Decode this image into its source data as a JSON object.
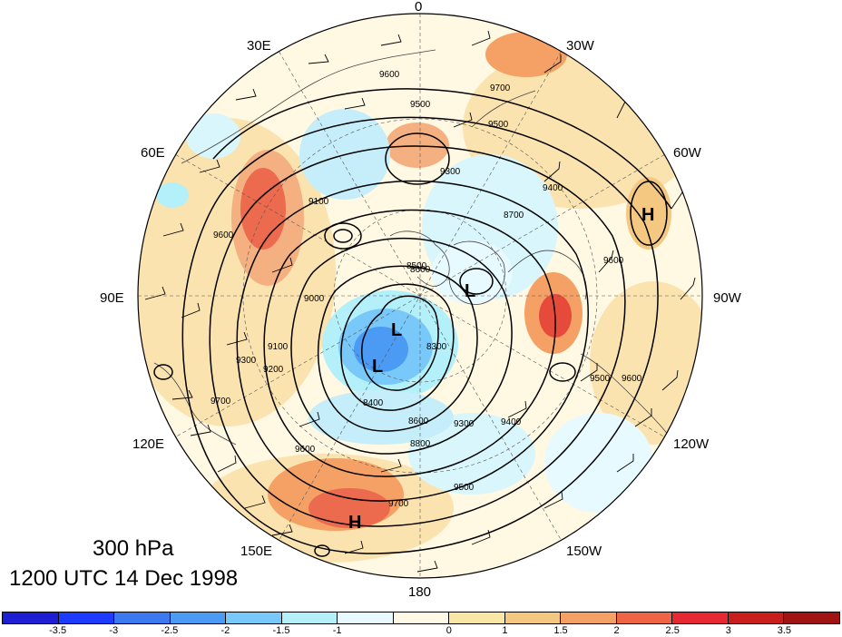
{
  "title": {
    "level": "300 hPa",
    "time": "1200 UTC 14 Dec 1998"
  },
  "longitude_labels": {
    "lon_0": "0",
    "lon_30w": "30W",
    "lon_60w": "60W",
    "lon_90w": "90W",
    "lon_120w": "120W",
    "lon_150w": "150W",
    "lon_180": "180",
    "lon_150e": "150E",
    "lon_120e": "120E",
    "lon_90e": "90E",
    "lon_60e": "60E",
    "lon_30e": "30E"
  },
  "pressure_centers": [
    "H",
    "L",
    "L",
    "L",
    "H"
  ],
  "contour_labels": [
    "9600",
    "9500",
    "9500",
    "9300",
    "9100",
    "9400",
    "9700",
    "9600",
    "9000",
    "8700",
    "8600",
    "8300",
    "8400",
    "8600",
    "8800",
    "9500",
    "9300",
    "9400",
    "9500",
    "9600",
    "9700",
    "9600",
    "9700",
    "9100",
    "9200",
    "9300",
    "8500",
    "9600"
  ],
  "colorbar": {
    "colors": [
      "#1e1ed2",
      "#1e3cff",
      "#3c78f0",
      "#4b9bf5",
      "#78c8fa",
      "#b4f0fa",
      "#e6faff",
      "#fffae6",
      "#fae6a5",
      "#f5c882",
      "#f5a064",
      "#f06446",
      "#e62832",
      "#c81e1e",
      "#a01414"
    ],
    "ticks": [
      "-3.5",
      "-3",
      "-2.5",
      "-2",
      "-1.5",
      "-1",
      "0",
      "1",
      "1.5",
      "2",
      "2.5",
      "3",
      "3.5"
    ]
  }
}
